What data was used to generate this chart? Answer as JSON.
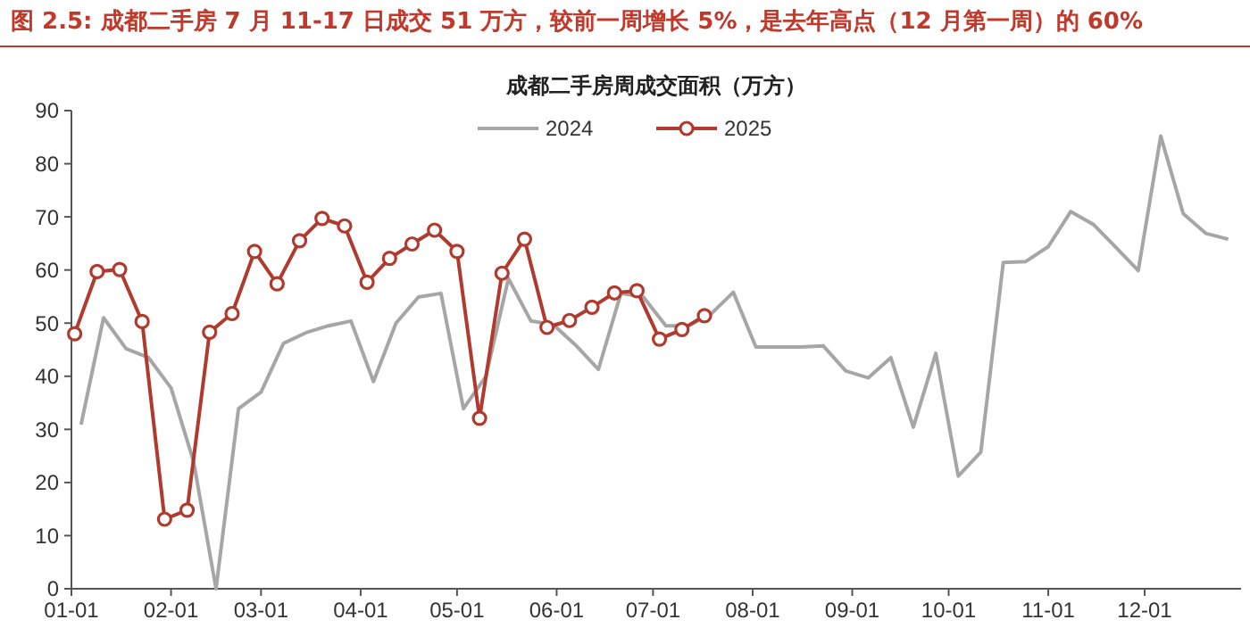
{
  "chart_data": {
    "type": "line",
    "title": "图 2.5:  成都二手房 7 月 11-17 日成交 51 万方，较前一周增长 5%，是去年高点（12 月第一周）的 60%",
    "subtitle": "成都二手房周成交面积（万方）",
    "xlim": [
      "--01-01",
      "--12-31"
    ],
    "xticks": [
      {
        "value": "--01-01",
        "label": "01-01"
      },
      {
        "value": "--02-01",
        "label": "02-01"
      },
      {
        "value": "--03-01",
        "label": "03-01"
      },
      {
        "value": "--04-01",
        "label": "04-01"
      },
      {
        "value": "--05-01",
        "label": "05-01"
      },
      {
        "value": "--06-01",
        "label": "06-01"
      },
      {
        "value": "--07-01",
        "label": "07-01"
      },
      {
        "value": "--08-01",
        "label": "08-01"
      },
      {
        "value": "--09-01",
        "label": "09-01"
      },
      {
        "value": "--10-01",
        "label": "10-01"
      },
      {
        "value": "--11-01",
        "label": "11-01"
      },
      {
        "value": "--12-01",
        "label": "12-01"
      }
    ],
    "ylim": [
      0,
      90
    ],
    "yticks": [
      0,
      10,
      20,
      30,
      40,
      50,
      60,
      70,
      80,
      90
    ],
    "grid": false,
    "legend": "top",
    "series": [
      {
        "name": "2024",
        "color": "#a6a6a6",
        "marker": "none",
        "x": [
          "--01-04",
          "--01-11",
          "--01-18",
          "--01-25",
          "--02-01",
          "--02-08",
          "--02-15",
          "--02-22",
          "--03-01",
          "--03-08",
          "--03-15",
          "--03-22",
          "--03-29",
          "--04-05",
          "--04-12",
          "--04-19",
          "--04-26",
          "--05-03",
          "--05-10",
          "--05-17",
          "--05-24",
          "--05-31",
          "--06-07",
          "--06-14",
          "--06-21",
          "--06-28",
          "--07-05",
          "--07-12",
          "--07-19",
          "--07-26",
          "--08-02",
          "--08-09",
          "--08-16",
          "--08-23",
          "--08-30",
          "--09-06",
          "--09-13",
          "--09-20",
          "--09-27",
          "--10-04",
          "--10-11",
          "--10-18",
          "--10-25",
          "--11-01",
          "--11-08",
          "--11-15",
          "--11-22",
          "--11-29",
          "--12-06",
          "--12-13",
          "--12-20",
          "--12-27"
        ],
        "values": [
          30.9,
          51.0,
          45.2,
          43.5,
          37.8,
          24,
          0,
          33.9,
          37.0,
          46.2,
          48.2,
          49.5,
          50.4,
          39.0,
          50.0,
          54.9,
          55.6,
          33.9,
          40.0,
          58.4,
          50.4,
          49.7,
          45.8,
          41.3,
          55.6,
          54.9,
          49.5,
          49.5,
          51.7,
          55.8,
          45.5,
          45.5,
          45.5,
          45.7,
          41.0,
          39.7,
          43.5,
          30.4,
          44.3,
          21.2,
          25.7,
          61.4,
          61.6,
          64.4,
          71.0,
          68.6,
          64.3,
          59.9,
          85.2,
          70.6,
          66.9,
          65.8
        ]
      },
      {
        "name": "2025",
        "color": "#b03a2e",
        "marker": "circle",
        "x": [
          "--01-02",
          "--01-09",
          "--01-16",
          "--01-23",
          "--01-30",
          "--02-06",
          "--02-13",
          "--02-20",
          "--02-27",
          "--03-06",
          "--03-13",
          "--03-20",
          "--03-27",
          "--04-03",
          "--04-10",
          "--04-17",
          "--04-24",
          "--05-01",
          "--05-08",
          "--05-15",
          "--05-22",
          "--05-29",
          "--06-05",
          "--06-12",
          "--06-19",
          "--06-26",
          "--07-03",
          "--07-10",
          "--07-17"
        ],
        "values": [
          48.0,
          59.7,
          60.1,
          50.3,
          13.1,
          14.8,
          48.3,
          51.8,
          63.5,
          57.4,
          65.5,
          69.7,
          68.3,
          57.7,
          62.2,
          64.9,
          67.5,
          63.5,
          32.1,
          59.4,
          65.8,
          49.2,
          50.5,
          53.0,
          55.7,
          56.1,
          47.0,
          48.8,
          51.4
        ]
      }
    ]
  }
}
